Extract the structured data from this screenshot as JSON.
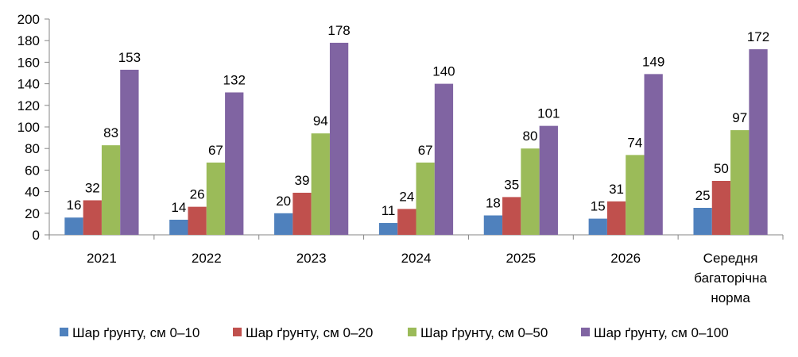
{
  "chart_data": {
    "type": "bar",
    "categories": [
      [
        "2021"
      ],
      [
        "2022"
      ],
      [
        "2023"
      ],
      [
        "2024"
      ],
      [
        "2025"
      ],
      [
        "2026"
      ],
      [
        "Середня",
        "багаторічна",
        "норма"
      ]
    ],
    "series": [
      {
        "name": "Шар ґрунту, см 0–10",
        "color": "#4f81bd",
        "values": [
          16,
          14,
          20,
          11,
          18,
          15,
          25
        ]
      },
      {
        "name": "Шар ґрунту, см 0–20",
        "color": "#c0504d",
        "values": [
          32,
          26,
          39,
          24,
          35,
          31,
          50
        ]
      },
      {
        "name": "Шар ґрунту, см 0–50",
        "color": "#9bbb59",
        "values": [
          83,
          67,
          94,
          67,
          80,
          74,
          97
        ]
      },
      {
        "name": "Шар ґрунту, см 0–100",
        "color": "#8064a2",
        "values": [
          153,
          132,
          178,
          140,
          101,
          149,
          172
        ]
      }
    ],
    "ylim": [
      0,
      200
    ],
    "yticks": [
      0,
      20,
      40,
      60,
      80,
      100,
      120,
      140,
      160,
      180,
      200
    ],
    "grid": false,
    "legend": "bottom",
    "data_labels": true
  }
}
